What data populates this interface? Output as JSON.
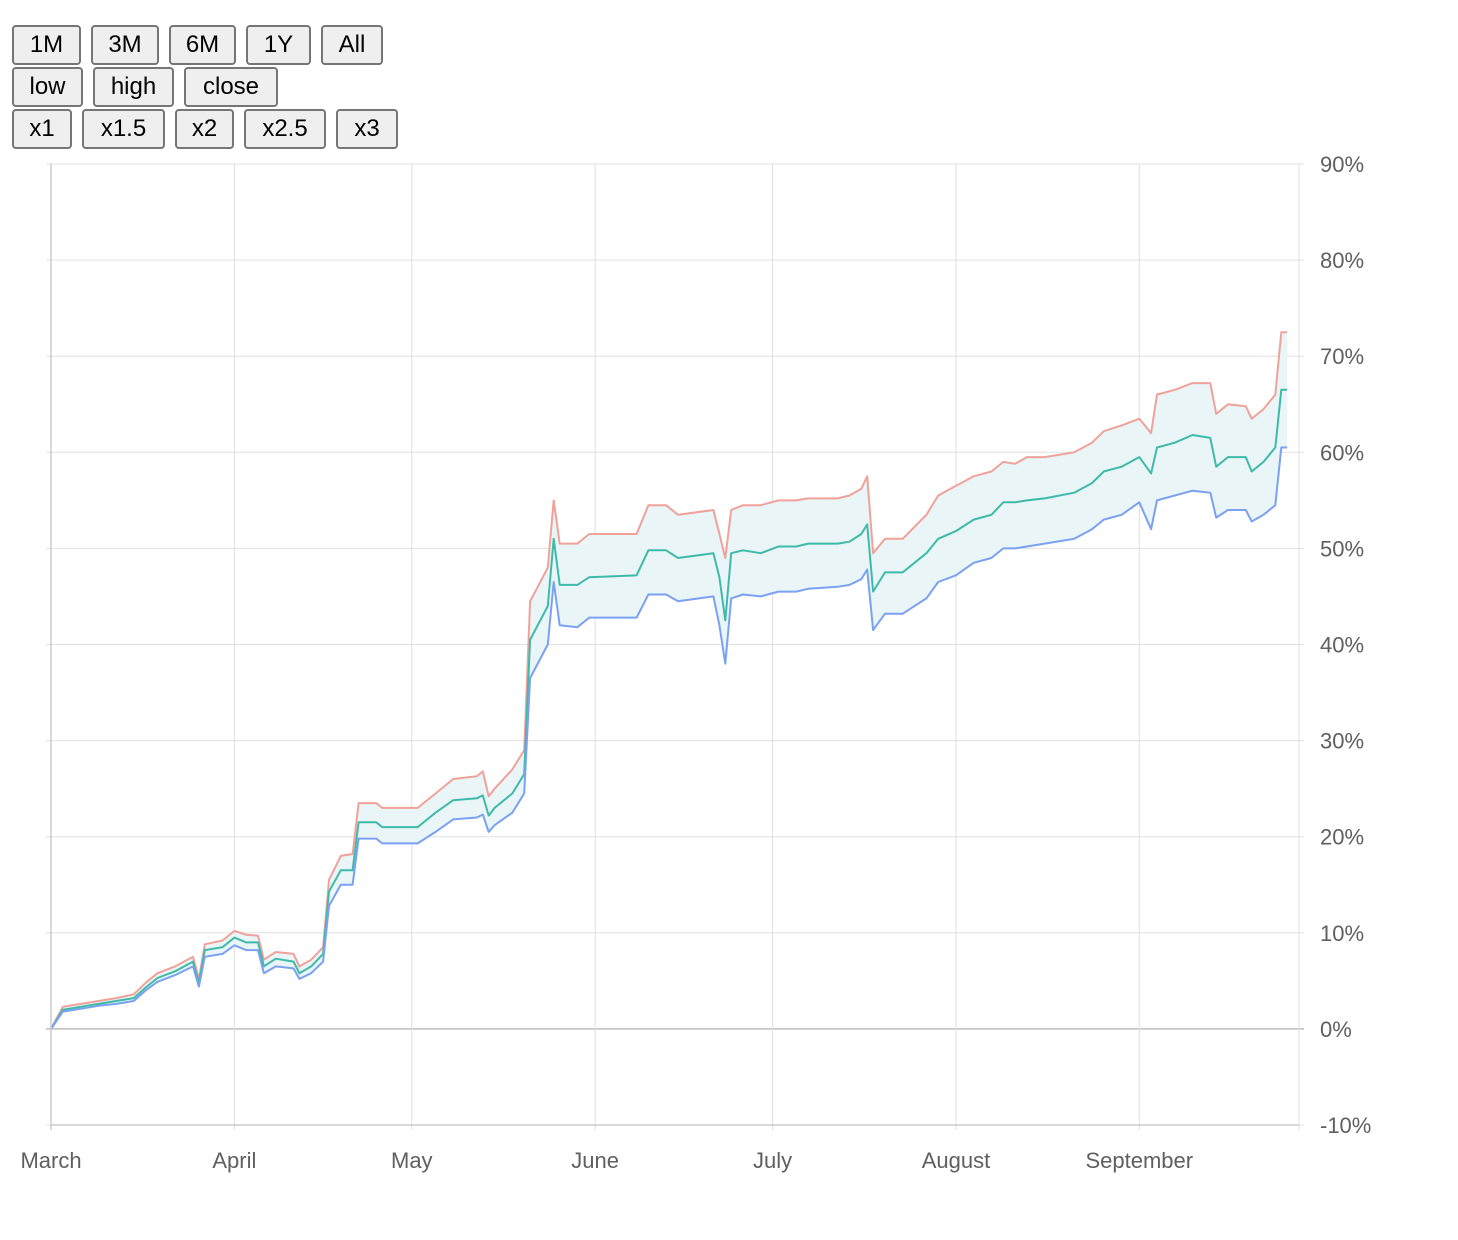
{
  "toolbar": {
    "range_buttons": [
      "1M",
      "3M",
      "6M",
      "1Y",
      "All"
    ],
    "field_buttons": [
      "low",
      "high",
      "close"
    ],
    "scale_buttons": [
      "x1",
      "x1.5",
      "x2",
      "x2.5",
      "x3"
    ]
  },
  "colors": {
    "low": "#7aa1f2",
    "high": "#f0a29a",
    "close": "#3ebaa9",
    "band_fill": "#e9f5f7",
    "grid": "#e0e0e0",
    "zero_line": "#bdbdbd",
    "axis_text": "#5f5f5f"
  },
  "chart_data": {
    "type": "area",
    "x_tick_labels": [
      "March",
      "April",
      "May",
      "June",
      "July",
      "August",
      "September"
    ],
    "x_tick_days": [
      0,
      31,
      61,
      92,
      122,
      153,
      184
    ],
    "y_tick_labels": [
      "90%",
      "80%",
      "70%",
      "60%",
      "50%",
      "40%",
      "30%",
      "20%",
      "10%",
      "0%",
      "-10%"
    ],
    "ylim": [
      -10,
      90
    ],
    "xlim_days": [
      0,
      211
    ],
    "y_axis_side": "right",
    "grid": true,
    "fill_between": [
      "low",
      "high"
    ],
    "x_unit": "days since 1 March",
    "series": [
      {
        "name": "high",
        "points": [
          [
            0,
            0
          ],
          [
            2,
            2.3
          ],
          [
            4,
            2.5
          ],
          [
            6,
            2.7
          ],
          [
            8,
            2.9
          ],
          [
            11,
            3.2
          ],
          [
            14,
            3.6
          ],
          [
            16,
            4.8
          ],
          [
            18,
            5.8
          ],
          [
            21,
            6.5
          ],
          [
            24,
            7.5
          ],
          [
            25,
            5.2
          ],
          [
            26,
            8.8
          ],
          [
            29,
            9.2
          ],
          [
            31,
            10.2
          ],
          [
            33,
            9.8
          ],
          [
            35,
            9.7
          ],
          [
            36,
            7.2
          ],
          [
            38,
            8.0
          ],
          [
            41,
            7.8
          ],
          [
            42,
            6.5
          ],
          [
            44,
            7.2
          ],
          [
            46,
            8.5
          ],
          [
            47,
            15.5
          ],
          [
            49,
            18.0
          ],
          [
            51,
            18.2
          ],
          [
            52,
            23.5
          ],
          [
            55,
            23.5
          ],
          [
            56,
            23.0
          ],
          [
            62,
            23.0
          ],
          [
            65,
            24.5
          ],
          [
            68,
            26.0
          ],
          [
            72,
            26.3
          ],
          [
            73,
            26.8
          ],
          [
            74,
            24.2
          ],
          [
            75,
            25.0
          ],
          [
            78,
            27.0
          ],
          [
            80,
            29.0
          ],
          [
            81,
            44.5
          ],
          [
            84,
            48.0
          ],
          [
            85,
            55.0
          ],
          [
            86,
            50.5
          ],
          [
            89,
            50.5
          ],
          [
            91,
            51.5
          ],
          [
            99,
            51.5
          ],
          [
            101,
            54.5
          ],
          [
            104,
            54.5
          ],
          [
            106,
            53.5
          ],
          [
            112,
            54.0
          ],
          [
            113,
            51.5
          ],
          [
            114,
            49.0
          ],
          [
            115,
            54.0
          ],
          [
            117,
            54.5
          ],
          [
            120,
            54.5
          ],
          [
            123,
            55.0
          ],
          [
            126,
            55.0
          ],
          [
            128,
            55.2
          ],
          [
            133,
            55.2
          ],
          [
            135,
            55.5
          ],
          [
            137,
            56.2
          ],
          [
            138,
            57.5
          ],
          [
            139,
            49.5
          ],
          [
            141,
            51.0
          ],
          [
            144,
            51.0
          ],
          [
            148,
            53.5
          ],
          [
            150,
            55.5
          ],
          [
            153,
            56.5
          ],
          [
            156,
            57.5
          ],
          [
            159,
            58.0
          ],
          [
            161,
            59.0
          ],
          [
            163,
            58.8
          ],
          [
            165,
            59.5
          ],
          [
            168,
            59.5
          ],
          [
            173,
            60.0
          ],
          [
            176,
            61.0
          ],
          [
            178,
            62.2
          ],
          [
            181,
            62.8
          ],
          [
            184,
            63.5
          ],
          [
            186,
            62.0
          ],
          [
            187,
            66.0
          ],
          [
            190,
            66.5
          ],
          [
            193,
            67.2
          ],
          [
            196,
            67.2
          ],
          [
            197,
            64.0
          ],
          [
            199,
            65.0
          ],
          [
            202,
            64.8
          ],
          [
            203,
            63.5
          ],
          [
            205,
            64.5
          ],
          [
            207,
            66.0
          ],
          [
            208,
            72.5
          ],
          [
            209,
            72.5
          ]
        ]
      },
      {
        "name": "close",
        "points": [
          [
            0,
            0
          ],
          [
            2,
            2.0
          ],
          [
            4,
            2.2
          ],
          [
            6,
            2.4
          ],
          [
            8,
            2.6
          ],
          [
            11,
            2.9
          ],
          [
            14,
            3.2
          ],
          [
            16,
            4.3
          ],
          [
            18,
            5.3
          ],
          [
            21,
            6.0
          ],
          [
            24,
            7.0
          ],
          [
            25,
            4.8
          ],
          [
            26,
            8.2
          ],
          [
            29,
            8.5
          ],
          [
            31,
            9.5
          ],
          [
            33,
            9.0
          ],
          [
            35,
            9.0
          ],
          [
            36,
            6.5
          ],
          [
            38,
            7.3
          ],
          [
            41,
            7.0
          ],
          [
            42,
            5.8
          ],
          [
            44,
            6.5
          ],
          [
            46,
            7.8
          ],
          [
            47,
            14.3
          ],
          [
            49,
            16.5
          ],
          [
            51,
            16.5
          ],
          [
            52,
            21.5
          ],
          [
            55,
            21.5
          ],
          [
            56,
            21.0
          ],
          [
            62,
            21.0
          ],
          [
            65,
            22.5
          ],
          [
            68,
            23.8
          ],
          [
            72,
            24.0
          ],
          [
            73,
            24.3
          ],
          [
            74,
            22.2
          ],
          [
            75,
            23.0
          ],
          [
            78,
            24.5
          ],
          [
            80,
            26.5
          ],
          [
            81,
            40.5
          ],
          [
            84,
            44.0
          ],
          [
            85,
            51.0
          ],
          [
            86,
            46.2
          ],
          [
            89,
            46.2
          ],
          [
            91,
            47.0
          ],
          [
            99,
            47.2
          ],
          [
            101,
            49.8
          ],
          [
            104,
            49.8
          ],
          [
            106,
            49.0
          ],
          [
            112,
            49.5
          ],
          [
            113,
            47.0
          ],
          [
            114,
            42.5
          ],
          [
            115,
            49.5
          ],
          [
            117,
            49.8
          ],
          [
            120,
            49.5
          ],
          [
            123,
            50.2
          ],
          [
            126,
            50.2
          ],
          [
            128,
            50.5
          ],
          [
            133,
            50.5
          ],
          [
            135,
            50.7
          ],
          [
            137,
            51.5
          ],
          [
            138,
            52.5
          ],
          [
            139,
            45.5
          ],
          [
            141,
            47.5
          ],
          [
            144,
            47.5
          ],
          [
            148,
            49.5
          ],
          [
            150,
            51.0
          ],
          [
            153,
            51.8
          ],
          [
            156,
            53.0
          ],
          [
            159,
            53.5
          ],
          [
            161,
            54.8
          ],
          [
            163,
            54.8
          ],
          [
            165,
            55.0
          ],
          [
            168,
            55.2
          ],
          [
            173,
            55.8
          ],
          [
            176,
            56.8
          ],
          [
            178,
            58.0
          ],
          [
            181,
            58.5
          ],
          [
            184,
            59.5
          ],
          [
            186,
            57.8
          ],
          [
            187,
            60.5
          ],
          [
            190,
            61.0
          ],
          [
            193,
            61.8
          ],
          [
            196,
            61.5
          ],
          [
            197,
            58.5
          ],
          [
            199,
            59.5
          ],
          [
            202,
            59.5
          ],
          [
            203,
            58.0
          ],
          [
            205,
            59.0
          ],
          [
            207,
            60.5
          ],
          [
            208,
            66.5
          ],
          [
            209,
            66.5
          ]
        ]
      },
      {
        "name": "low",
        "points": [
          [
            0,
            0
          ],
          [
            2,
            1.8
          ],
          [
            4,
            2.0
          ],
          [
            6,
            2.2
          ],
          [
            8,
            2.4
          ],
          [
            11,
            2.6
          ],
          [
            14,
            2.9
          ],
          [
            16,
            4.0
          ],
          [
            18,
            4.9
          ],
          [
            21,
            5.6
          ],
          [
            24,
            6.5
          ],
          [
            25,
            4.4
          ],
          [
            26,
            7.5
          ],
          [
            29,
            7.8
          ],
          [
            31,
            8.7
          ],
          [
            33,
            8.2
          ],
          [
            35,
            8.2
          ],
          [
            36,
            5.8
          ],
          [
            38,
            6.5
          ],
          [
            41,
            6.3
          ],
          [
            42,
            5.2
          ],
          [
            44,
            5.8
          ],
          [
            46,
            7.0
          ],
          [
            47,
            12.8
          ],
          [
            49,
            15.0
          ],
          [
            51,
            15.0
          ],
          [
            52,
            19.8
          ],
          [
            55,
            19.8
          ],
          [
            56,
            19.3
          ],
          [
            62,
            19.3
          ],
          [
            65,
            20.5
          ],
          [
            68,
            21.8
          ],
          [
            72,
            22.0
          ],
          [
            73,
            22.3
          ],
          [
            74,
            20.5
          ],
          [
            75,
            21.2
          ],
          [
            78,
            22.5
          ],
          [
            80,
            24.5
          ],
          [
            81,
            36.5
          ],
          [
            84,
            40.0
          ],
          [
            85,
            46.5
          ],
          [
            86,
            42.0
          ],
          [
            89,
            41.8
          ],
          [
            91,
            42.8
          ],
          [
            99,
            42.8
          ],
          [
            101,
            45.2
          ],
          [
            104,
            45.2
          ],
          [
            106,
            44.5
          ],
          [
            112,
            45.0
          ],
          [
            113,
            42.0
          ],
          [
            114,
            38.0
          ],
          [
            115,
            44.8
          ],
          [
            117,
            45.2
          ],
          [
            120,
            45.0
          ],
          [
            123,
            45.5
          ],
          [
            126,
            45.5
          ],
          [
            128,
            45.8
          ],
          [
            133,
            46.0
          ],
          [
            135,
            46.2
          ],
          [
            137,
            46.8
          ],
          [
            138,
            47.8
          ],
          [
            139,
            41.5
          ],
          [
            141,
            43.2
          ],
          [
            144,
            43.2
          ],
          [
            148,
            44.8
          ],
          [
            150,
            46.5
          ],
          [
            153,
            47.2
          ],
          [
            156,
            48.5
          ],
          [
            159,
            49.0
          ],
          [
            161,
            50.0
          ],
          [
            163,
            50.0
          ],
          [
            165,
            50.2
          ],
          [
            168,
            50.5
          ],
          [
            173,
            51.0
          ],
          [
            176,
            52.0
          ],
          [
            178,
            53.0
          ],
          [
            181,
            53.5
          ],
          [
            184,
            54.8
          ],
          [
            186,
            52.0
          ],
          [
            187,
            55.0
          ],
          [
            190,
            55.5
          ],
          [
            193,
            56.0
          ],
          [
            196,
            55.8
          ],
          [
            197,
            53.2
          ],
          [
            199,
            54.0
          ],
          [
            202,
            54.0
          ],
          [
            203,
            52.8
          ],
          [
            205,
            53.5
          ],
          [
            207,
            54.5
          ],
          [
            208,
            60.5
          ],
          [
            209,
            60.5
          ]
        ]
      }
    ]
  }
}
